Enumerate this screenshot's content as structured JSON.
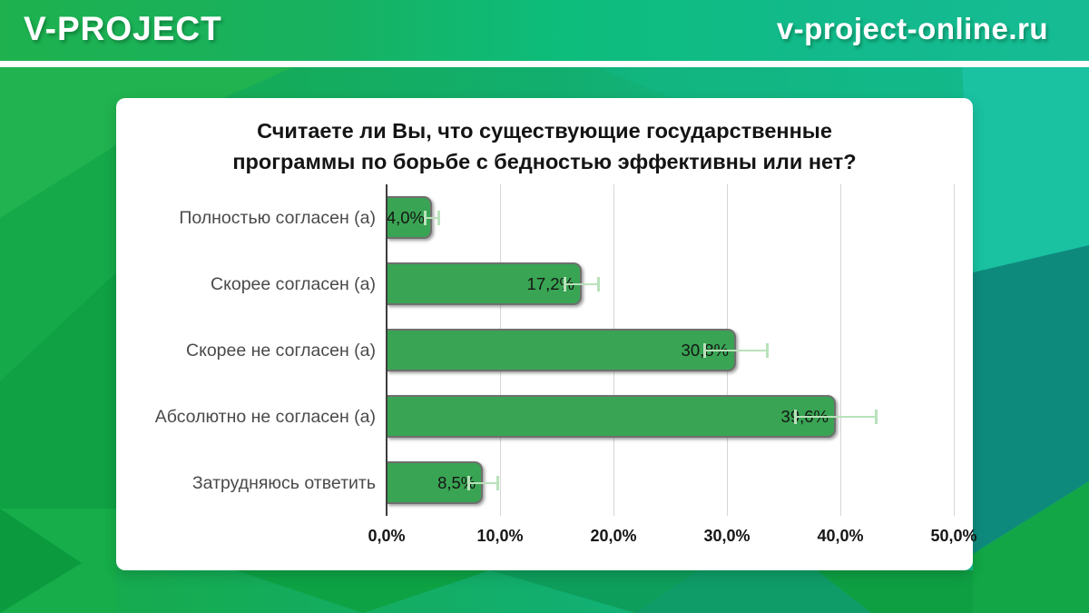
{
  "header": {
    "logo": "V-PROJECT",
    "site": "v-project-online.ru"
  },
  "chart_data": {
    "type": "bar",
    "orientation": "horizontal",
    "title": "Считаете ли Вы, что существующие государственные программы по борьбе с бедностью эффективны или нет?",
    "title_lines": [
      "Считаете ли Вы, что существующие государственные",
      "программы по борьбе с бедностью эффективны или нет?"
    ],
    "categories": [
      "Полностью согласен (а)",
      "Скорее согласен (а)",
      "Скорее не согласен (а)",
      "Абсолютно не согласен (а)",
      "Затрудняюсь ответить"
    ],
    "values": [
      4.0,
      17.2,
      30.8,
      39.6,
      8.5
    ],
    "value_labels": [
      "4,0%",
      "17,2%",
      "30,8%",
      "39,6%",
      "8,5%"
    ],
    "error_bars": [
      0.7,
      1.6,
      2.9,
      3.7,
      1.4
    ],
    "x_ticks": [
      {
        "value": 0,
        "label": "0,0%"
      },
      {
        "value": 10,
        "label": "10,0%"
      },
      {
        "value": 20,
        "label": "20,0%"
      },
      {
        "value": 30,
        "label": "30,0%"
      },
      {
        "value": 40,
        "label": "40,0%"
      },
      {
        "value": 50,
        "label": "50,0%"
      }
    ],
    "xlim": [
      0,
      50
    ],
    "grid": true,
    "legend": "none",
    "colors": {
      "bar": "#39a453",
      "bar_border": "#6f6f6f",
      "error_bar": "#b9e2bb",
      "gridline": "#d6d6d6",
      "axis": "#3d3d3d"
    }
  }
}
